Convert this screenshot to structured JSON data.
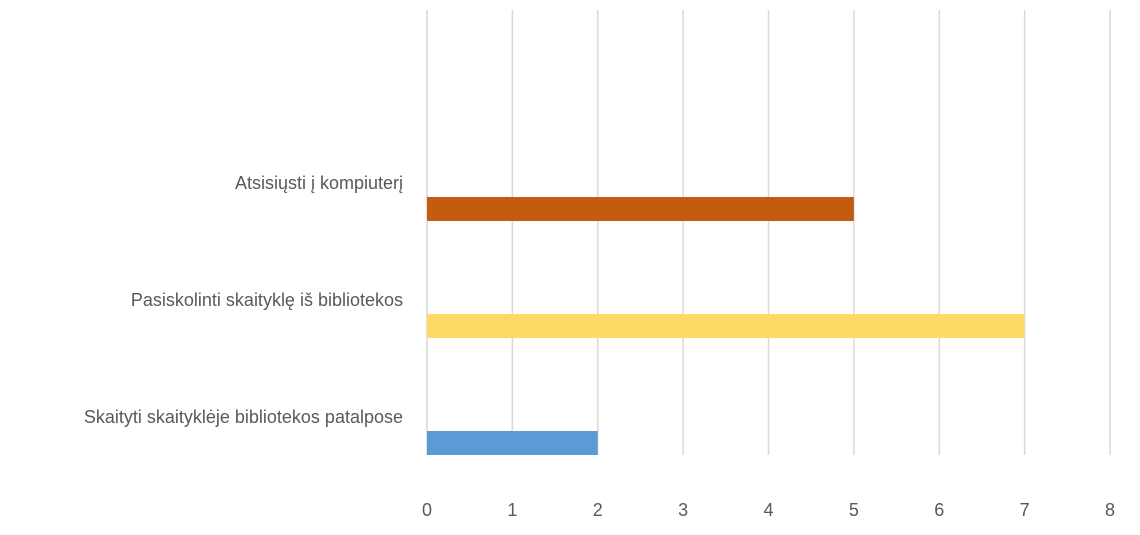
{
  "chart_data": {
    "type": "bar",
    "orientation": "horizontal",
    "categories": [
      "Atsisiųsti į kompiuterį",
      "Pasiskolinti skaityklę iš bibliotekos",
      "Skaityti skaityklėje bibliotekos patalpose"
    ],
    "values": [
      5,
      7,
      2
    ],
    "bar_colors": [
      "#c55a11",
      "#ffd966",
      "#5b9bd5"
    ],
    "xlim": [
      0,
      8
    ],
    "x_ticks": [
      "0",
      "1",
      "2",
      "3",
      "4",
      "5",
      "6",
      "7",
      "8"
    ],
    "grid": "vertical",
    "title": "",
    "xlabel": "",
    "ylabel": ""
  }
}
